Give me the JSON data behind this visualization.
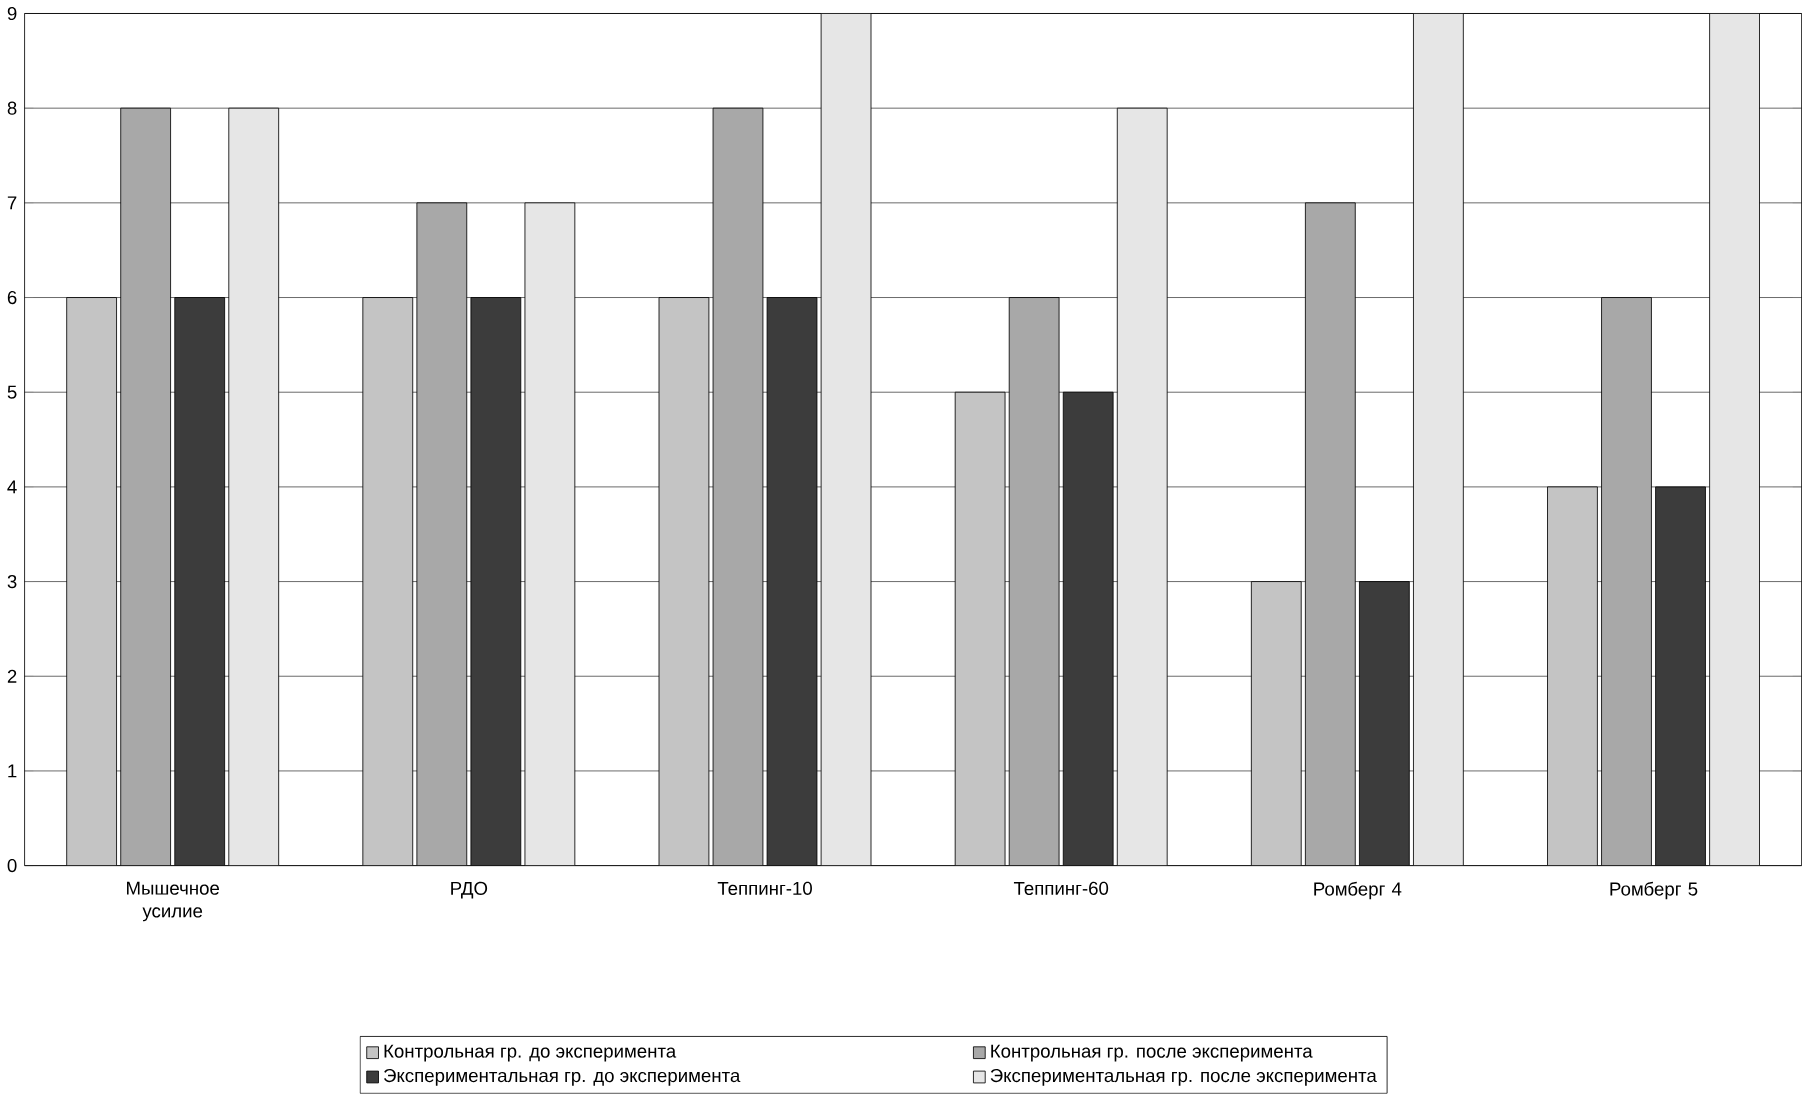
{
  "chart_data": {
    "type": "bar",
    "categories": [
      "Мышечное усилие",
      "РДО",
      "Теппинг-10",
      "Теппинг-60",
      "Ромберг 4",
      "Ромберг 5"
    ],
    "series": [
      {
        "name": "Контрольная гр. до эксперимента",
        "color": "#c4c4c4",
        "values": [
          6,
          6,
          6,
          5,
          3,
          4
        ]
      },
      {
        "name": "Контрольная гр. после эксперимента",
        "color": "#a8a8a8",
        "values": [
          8,
          7,
          8,
          6,
          7,
          6
        ]
      },
      {
        "name": "Экспериментальная гр. до эксперимента",
        "color": "#3c3c3c",
        "values": [
          6,
          6,
          6,
          5,
          3,
          4
        ]
      },
      {
        "name": "Экспериментальная гр. после эксперимента",
        "color": "#e6e6e6",
        "values": [
          8,
          7,
          9,
          8,
          9,
          9
        ]
      }
    ],
    "ylim": [
      0,
      9
    ],
    "yticks": [
      0,
      1,
      2,
      3,
      4,
      5,
      6,
      7,
      8,
      9
    ],
    "grid": "y",
    "legend": "bottom"
  }
}
